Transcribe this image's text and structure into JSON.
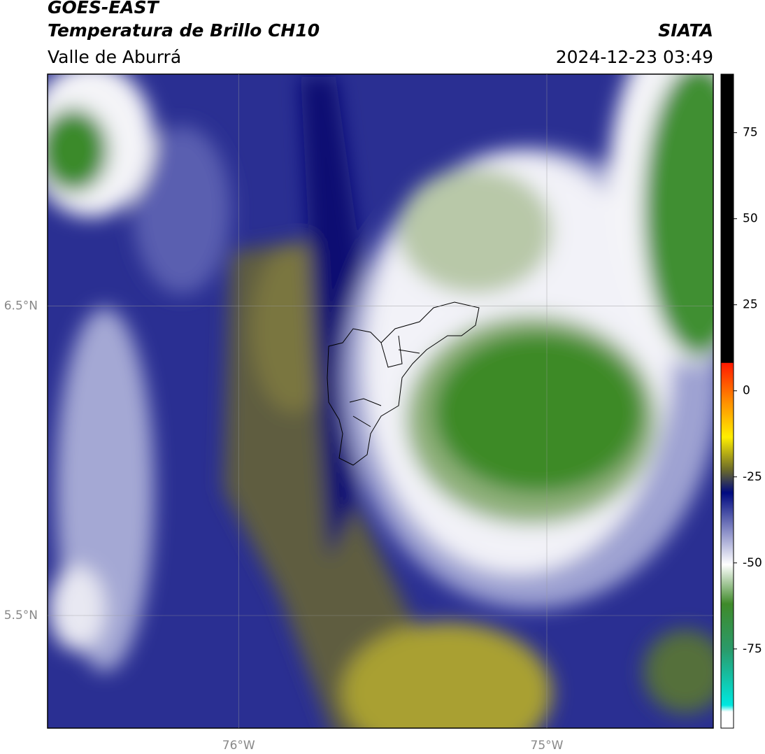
{
  "header": {
    "title": "GOES-EAST",
    "subtitle": "Temperatura de Brillo CH10",
    "region": "Valle de Aburrá",
    "source": "SIATA",
    "timestamp": "2024-12-23 03:49"
  },
  "map": {
    "lat_range": [
      5.136,
      7.25
    ],
    "lon_range": [
      -76.62,
      -74.46
    ],
    "lat_ticks": [
      {
        "value": 6.5,
        "label": "6.5°N"
      },
      {
        "value": 5.5,
        "label": "5.5°N"
      }
    ],
    "lon_ticks": [
      {
        "value": -76,
        "label": "76°W"
      },
      {
        "value": -75,
        "label": "75°W"
      }
    ]
  },
  "colorbar": {
    "lim": [
      -98,
      92
    ],
    "ticks": [
      75,
      50,
      25,
      0,
      -25,
      -50,
      -75
    ]
  }
}
